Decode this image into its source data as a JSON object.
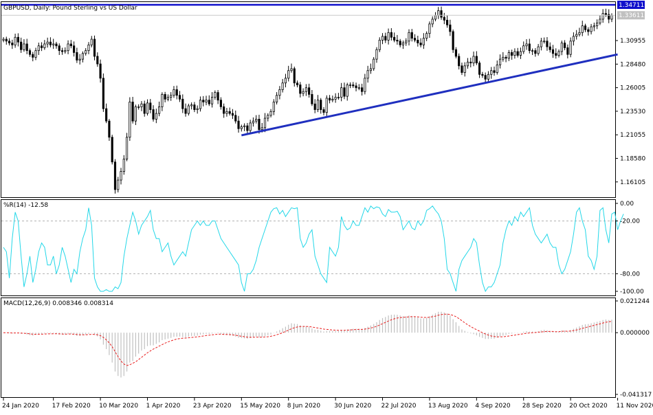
{
  "chart_data": [
    {
      "type": "candlestick",
      "title": "GBPUSD, Daily: Pound Sterling vs US Dollar",
      "y_ticks": [
        "1.16105",
        "1.18580",
        "1.21055",
        "1.23530",
        "1.26005",
        "1.28480",
        "1.30955"
      ],
      "y_tick_values": [
        1.16105,
        1.1858,
        1.21055,
        1.2353,
        1.26005,
        1.2848,
        1.30955
      ],
      "ylim": [
        1.145,
        1.35
      ],
      "horizontal_line": {
        "value": 1.34711,
        "label": "1.34711",
        "color": "#1010cc"
      },
      "current_price": {
        "value": 1.33611,
        "label": "1.33611"
      },
      "trendline": {
        "from": {
          "date": "15 May 2020",
          "price": 1.21
        },
        "to": {
          "date": "25 Nov 2020",
          "price": 1.295
        },
        "color": "#1f2fbf"
      },
      "up_color": "#ffffff",
      "down_color": "#000000",
      "close": [
        1.311,
        1.309,
        1.307,
        1.305,
        1.313,
        1.308,
        1.3,
        1.306,
        1.299,
        1.295,
        1.292,
        1.299,
        1.304,
        1.302,
        1.306,
        1.308,
        1.305,
        1.306,
        1.304,
        1.299,
        1.298,
        1.299,
        1.306,
        1.304,
        1.297,
        1.289,
        1.29,
        1.296,
        1.299,
        1.305,
        1.311,
        1.293,
        1.285,
        1.27,
        1.238,
        1.225,
        1.208,
        1.182,
        1.153,
        1.163,
        1.172,
        1.185,
        1.208,
        1.245,
        1.225,
        1.24,
        1.24,
        1.243,
        1.233,
        1.244,
        1.237,
        1.227,
        1.233,
        1.24,
        1.253,
        1.248,
        1.25,
        1.252,
        1.258,
        1.252,
        1.248,
        1.238,
        1.233,
        1.241,
        1.242,
        1.237,
        1.238,
        1.247,
        1.245,
        1.247,
        1.243,
        1.25,
        1.255,
        1.247,
        1.24,
        1.233,
        1.235,
        1.233,
        1.231,
        1.225,
        1.217,
        1.219,
        1.22,
        1.215,
        1.223,
        1.225,
        1.227,
        1.216,
        1.218,
        1.228,
        1.231,
        1.235,
        1.245,
        1.252,
        1.258,
        1.265,
        1.27,
        1.278,
        1.28,
        1.265,
        1.263,
        1.254,
        1.256,
        1.26,
        1.253,
        1.243,
        1.237,
        1.247,
        1.237,
        1.234,
        1.249,
        1.247,
        1.248,
        1.25,
        1.25,
        1.26,
        1.251,
        1.263,
        1.263,
        1.262,
        1.26,
        1.26,
        1.256,
        1.27,
        1.278,
        1.28,
        1.29,
        1.3,
        1.31,
        1.314,
        1.31,
        1.318,
        1.313,
        1.31,
        1.309,
        1.305,
        1.307,
        1.309,
        1.318,
        1.312,
        1.31,
        1.307,
        1.305,
        1.312,
        1.317,
        1.327,
        1.332,
        1.336,
        1.341,
        1.334,
        1.331,
        1.326,
        1.319,
        1.3,
        1.293,
        1.283,
        1.276,
        1.283,
        1.287,
        1.286,
        1.293,
        1.286,
        1.274,
        1.273,
        1.269,
        1.274,
        1.278,
        1.276,
        1.284,
        1.29,
        1.292,
        1.291,
        1.297,
        1.294,
        1.298,
        1.294,
        1.298,
        1.304,
        1.306,
        1.299,
        1.299,
        1.296,
        1.303,
        1.309,
        1.309,
        1.303,
        1.3,
        1.296,
        1.294,
        1.298,
        1.307,
        1.302,
        1.295,
        1.309,
        1.314,
        1.316,
        1.318,
        1.325,
        1.321,
        1.319,
        1.324,
        1.325,
        1.328,
        1.332,
        1.338,
        1.337,
        1.332,
        1.336
      ]
    },
    {
      "type": "line",
      "title": "%R(14) -12.58",
      "y_ticks": [
        "0.00",
        "-20.00",
        "-80.00",
        "-100.00"
      ],
      "y_tick_values": [
        0,
        -20,
        -80,
        -100
      ],
      "ylim": [
        -100,
        0
      ],
      "levels": [
        -20,
        -80
      ],
      "series": [
        {
          "color": "#22d7e8",
          "values": [
            -50,
            -55,
            -85,
            -40,
            -10,
            -20,
            -60,
            -95,
            -80,
            -60,
            -90,
            -75,
            -55,
            -45,
            -50,
            -70,
            -70,
            -60,
            -80,
            -70,
            -50,
            -60,
            -75,
            -90,
            -75,
            -80,
            -55,
            -40,
            -30,
            -5,
            -25,
            -85,
            -95,
            -100,
            -100,
            -98,
            -100,
            -100,
            -95,
            -97,
            -90,
            -60,
            -40,
            -25,
            -10,
            -20,
            -35,
            -25,
            -20,
            -15,
            -8,
            -30,
            -40,
            -40,
            -55,
            -50,
            -45,
            -60,
            -70,
            -65,
            -60,
            -55,
            -60,
            -45,
            -30,
            -25,
            -20,
            -25,
            -20,
            -25,
            -25,
            -20,
            -20,
            -30,
            -40,
            -45,
            -50,
            -55,
            -60,
            -65,
            -70,
            -90,
            -100,
            -80,
            -80,
            -75,
            -65,
            -50,
            -40,
            -30,
            -20,
            -10,
            -6,
            -5,
            -12,
            -8,
            -15,
            -10,
            -5,
            -6,
            -5,
            -40,
            -50,
            -45,
            -35,
            -30,
            -60,
            -70,
            -80,
            -85,
            -90,
            -50,
            -55,
            -60,
            -50,
            -15,
            -25,
            -30,
            -28,
            -20,
            -25,
            -25,
            -15,
            -5,
            -10,
            -3,
            -6,
            -4,
            -5,
            -12,
            -15,
            -7,
            -10,
            -10,
            -9,
            -15,
            -30,
            -25,
            -20,
            -28,
            -30,
            -20,
            -25,
            -20,
            -8,
            -6,
            -3,
            -8,
            -12,
            -20,
            -40,
            -75,
            -80,
            -90,
            -100,
            -75,
            -65,
            -60,
            -55,
            -50,
            -40,
            -45,
            -70,
            -90,
            -100,
            -95,
            -95,
            -90,
            -80,
            -70,
            -45,
            -30,
            -20,
            -25,
            -15,
            -20,
            -10,
            -15,
            -10,
            -5,
            -25,
            -35,
            -40,
            -45,
            -40,
            -35,
            -45,
            -50,
            -50,
            -70,
            -80,
            -75,
            -65,
            -55,
            -35,
            -10,
            -5,
            -20,
            -30,
            -60,
            -65,
            -75,
            -60,
            -8,
            -5,
            -30,
            -45,
            -12,
            -10,
            -30,
            -20,
            -12
          ]
        }
      ]
    },
    {
      "type": "bar",
      "title": "MACD(12,26,9) 0.008346 0.008314",
      "y_ticks": [
        "0.021244",
        "0.000000",
        "-0.041317"
      ],
      "y_tick_values": [
        0.021244,
        0,
        -0.041317
      ],
      "ylim": [
        -0.041317,
        0.021244
      ],
      "histogram_color": "#c0c0c0",
      "signal_color": "#e81b1b",
      "histogram": [
        0,
        0,
        -0.0003,
        -0.0006,
        -0.0001,
        -0.0002,
        -0.0008,
        -0.0005,
        -0.0012,
        -0.0017,
        -0.002,
        -0.0014,
        -0.0008,
        -0.0008,
        -0.0005,
        -0.0004,
        -0.0005,
        -0.0005,
        -0.0008,
        -0.0012,
        -0.0014,
        -0.0013,
        -0.0008,
        -0.0009,
        -0.0015,
        -0.0022,
        -0.0021,
        -0.0018,
        -0.0014,
        -0.0008,
        -0.0002,
        -0.0015,
        -0.0025,
        -0.0045,
        -0.008,
        -0.011,
        -0.015,
        -0.02,
        -0.026,
        -0.029,
        -0.03,
        -0.029,
        -0.026,
        -0.02,
        -0.019,
        -0.016,
        -0.014,
        -0.012,
        -0.011,
        -0.009,
        -0.0085,
        -0.0085,
        -0.0075,
        -0.0065,
        -0.005,
        -0.0045,
        -0.004,
        -0.0035,
        -0.0028,
        -0.0027,
        -0.0026,
        -0.003,
        -0.0032,
        -0.0027,
        -0.0022,
        -0.0022,
        -0.002,
        -0.0013,
        -0.0011,
        -0.0008,
        -0.0009,
        -0.0006,
        -0.0002,
        -0.0004,
        -0.0009,
        -0.0015,
        -0.0016,
        -0.0018,
        -0.002,
        -0.0026,
        -0.0034,
        -0.0036,
        -0.0038,
        -0.004,
        -0.0036,
        -0.0031,
        -0.0026,
        -0.003,
        -0.003,
        -0.0024,
        -0.0018,
        -0.0012,
        -0.0002,
        0.0008,
        0.0018,
        0.003,
        0.004,
        0.0053,
        0.0063,
        0.006,
        0.0058,
        0.005,
        0.0045,
        0.0043,
        0.0038,
        0.0028,
        0.002,
        0.002,
        0.0014,
        0.0008,
        0.0012,
        0.0012,
        0.0012,
        0.0013,
        0.0012,
        0.0018,
        0.0016,
        0.0022,
        0.0024,
        0.0026,
        0.0026,
        0.0026,
        0.0024,
        0.0032,
        0.004,
        0.0048,
        0.0058,
        0.007,
        0.0085,
        0.0098,
        0.0105,
        0.0115,
        0.012,
        0.0121,
        0.012,
        0.0115,
        0.011,
        0.011,
        0.0115,
        0.0112,
        0.0108,
        0.0102,
        0.0095,
        0.0096,
        0.01,
        0.011,
        0.012,
        0.013,
        0.014,
        0.014,
        0.0135,
        0.0128,
        0.0115,
        0.009,
        0.007,
        0.0045,
        0.0022,
        0.0012,
        0.0004,
        -0.0005,
        -0.001,
        -0.0018,
        -0.0028,
        -0.0035,
        -0.0042,
        -0.0042,
        -0.004,
        -0.004,
        -0.0034,
        -0.0026,
        -0.002,
        -0.0016,
        -0.0008,
        -0.0006,
        -0.0002,
        -0.0002,
        0.0001,
        0.0006,
        0.001,
        0.0008,
        0.0008,
        0.0006,
        0.001,
        0.0016,
        0.0019,
        0.0016,
        0.0012,
        0.0008,
        0.0005,
        0.0008,
        0.0016,
        0.0014,
        0.0008,
        0.0018,
        0.0026,
        0.0034,
        0.0042,
        0.0052,
        0.0056,
        0.0058,
        0.0063,
        0.0068,
        0.0073,
        0.0078,
        0.0085,
        0.0088,
        0.0085,
        0.0087
      ],
      "signal": [
        0,
        0,
        -0.0001,
        -0.0002,
        -0.0002,
        -0.0002,
        -0.0003,
        -0.0004,
        -0.0005,
        -0.0008,
        -0.001,
        -0.0011,
        -0.001,
        -0.001,
        -0.0009,
        -0.0008,
        -0.0008,
        -0.0007,
        -0.0007,
        -0.0008,
        -0.0009,
        -0.001,
        -0.0009,
        -0.0009,
        -0.001,
        -0.0012,
        -0.0014,
        -0.0014,
        -0.0014,
        -0.0013,
        -0.0011,
        -0.0012,
        -0.0014,
        -0.002,
        -0.0032,
        -0.0048,
        -0.0068,
        -0.0094,
        -0.0127,
        -0.016,
        -0.019,
        -0.021,
        -0.022,
        -0.0215,
        -0.0205,
        -0.0195,
        -0.018,
        -0.0165,
        -0.015,
        -0.0135,
        -0.0122,
        -0.011,
        -0.01,
        -0.009,
        -0.008,
        -0.007,
        -0.0062,
        -0.0055,
        -0.0048,
        -0.0043,
        -0.0039,
        -0.0037,
        -0.0036,
        -0.0034,
        -0.0032,
        -0.003,
        -0.0028,
        -0.0025,
        -0.0022,
        -0.0019,
        -0.0017,
        -0.0015,
        -0.0012,
        -0.001,
        -0.001,
        -0.0011,
        -0.0012,
        -0.0013,
        -0.0015,
        -0.0017,
        -0.0021,
        -0.0024,
        -0.0027,
        -0.003,
        -0.0031,
        -0.0031,
        -0.003,
        -0.003,
        -0.003,
        -0.0029,
        -0.0027,
        -0.0024,
        -0.002,
        -0.0014,
        -0.0008,
        0.0,
        0.0008,
        0.0017,
        0.0026,
        0.0033,
        0.0038,
        0.0041,
        0.0042,
        0.0042,
        0.0041,
        0.0038,
        0.0034,
        0.0031,
        0.0028,
        0.0024,
        0.0022,
        0.002,
        0.0018,
        0.0017,
        0.0016,
        0.0016,
        0.0016,
        0.0017,
        0.0018,
        0.002,
        0.0021,
        0.0022,
        0.0022,
        0.0024,
        0.0027,
        0.0031,
        0.0036,
        0.0043,
        0.0051,
        0.006,
        0.0069,
        0.0078,
        0.0086,
        0.0093,
        0.0098,
        0.0101,
        0.0103,
        0.0104,
        0.0106,
        0.0107,
        0.0107,
        0.0106,
        0.0104,
        0.0102,
        0.0102,
        0.0103,
        0.0107,
        0.0111,
        0.0117,
        0.0121,
        0.0124,
        0.0124,
        0.0122,
        0.0116,
        0.0107,
        0.0094,
        0.008,
        0.0066,
        0.0053,
        0.0041,
        0.003,
        0.002,
        0.001,
        0.0,
        -0.0009,
        -0.0016,
        -0.0022,
        -0.0026,
        -0.0028,
        -0.0028,
        -0.0027,
        -0.0025,
        -0.0022,
        -0.0019,
        -0.0016,
        -0.0013,
        -0.001,
        -0.0007,
        -0.0004,
        -0.0002,
        0.0,
        0.0001,
        0.0003,
        0.0005,
        0.0007,
        0.0008,
        0.0008,
        0.0008,
        0.0007,
        0.0007,
        0.0009,
        0.001,
        0.0009,
        0.0011,
        0.0014,
        0.0018,
        0.0023,
        0.0029,
        0.0034,
        0.0039,
        0.0044,
        0.0049,
        0.0054,
        0.0059,
        0.0065,
        0.007,
        0.0073,
        0.0076
      ]
    }
  ],
  "x_axis_labels": [
    {
      "text": "24 Jan 2020",
      "index": 0
    },
    {
      "text": "17 Feb 2020",
      "index": 17
    },
    {
      "text": "10 Mar 2020",
      "index": 33
    },
    {
      "text": "1 Apr 2020",
      "index": 49
    },
    {
      "text": "23 Apr 2020",
      "index": 65
    },
    {
      "text": "15 May 2020",
      "index": 81
    },
    {
      "text": "8 Jun 2020",
      "index": 97
    },
    {
      "text": "30 Jun 2020",
      "index": 113
    },
    {
      "text": "22 Jul 2020",
      "index": 129
    },
    {
      "text": "13 Aug 2020",
      "index": 145
    },
    {
      "text": "4 Sep 2020",
      "index": 161
    },
    {
      "text": "28 Sep 2020",
      "index": 177
    },
    {
      "text": "20 Oct 2020",
      "index": 193
    },
    {
      "text": "11 Nov 2020",
      "index": 209
    }
  ]
}
